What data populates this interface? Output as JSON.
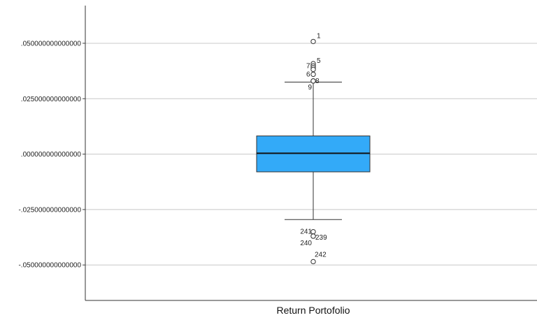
{
  "chart_data": {
    "type": "boxplot",
    "xlabel": "Return Portofolio",
    "ylabel": "",
    "ylim": [
      -0.066,
      0.067
    ],
    "grid": true,
    "yticks": [
      {
        "value": 0.05,
        "label": ".050000000000000"
      },
      {
        "value": 0.025,
        "label": ".025000000000000"
      },
      {
        "value": 0.0,
        "label": ".000000000000000"
      },
      {
        "value": -0.025,
        "label": "-.025000000000000"
      },
      {
        "value": -0.05,
        "label": "-.050000000000000"
      }
    ],
    "box": {
      "q1": -0.008,
      "median": 0.0004,
      "q3": 0.0082,
      "whisker_low": -0.0295,
      "whisker_high": 0.0325
    },
    "box_color": "#33aaf8",
    "outliers": [
      {
        "label": "1",
        "value": 0.0508
      },
      {
        "label": "5",
        "value": 0.0408
      },
      {
        "label": "7",
        "value": 0.0398
      },
      {
        "label": "",
        "value": 0.039
      },
      {
        "label": "",
        "value": 0.0382
      },
      {
        "label": "6",
        "value": 0.036
      },
      {
        "label": "8",
        "value": 0.033
      },
      {
        "label": "9",
        "value": 0.033
      },
      {
        "label": "241",
        "value": -0.035
      },
      {
        "label": "239",
        "value": -0.037
      },
      {
        "label": "240",
        "value": -0.037
      },
      {
        "label": "242",
        "value": -0.0485
      }
    ]
  }
}
